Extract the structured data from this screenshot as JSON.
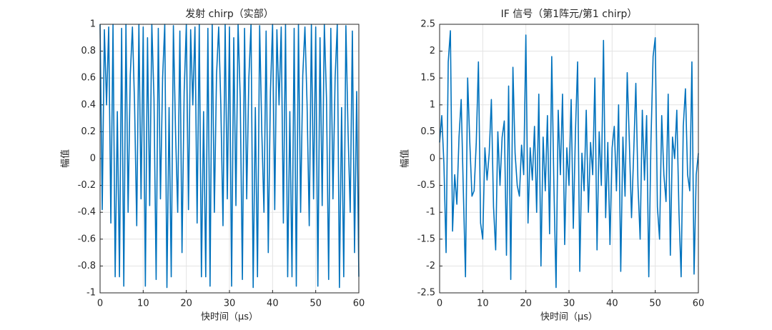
{
  "chart_data": [
    {
      "type": "line",
      "title": "发射 chirp（实部）",
      "xlabel": "快时间（μs）",
      "ylabel": "幅值",
      "color": "#0072bd",
      "grid": true,
      "xlim": [
        0,
        60
      ],
      "xticks": [
        0,
        10,
        20,
        30,
        40,
        50,
        60
      ],
      "ylim": [
        -1,
        1
      ],
      "yticks": [
        -1,
        -0.8,
        -0.6,
        -0.4,
        -0.2,
        0,
        0.2,
        0.4,
        0.6,
        0.8,
        1
      ],
      "x": [
        0,
        0.5,
        1,
        1.5,
        2,
        2.5,
        3,
        3.5,
        4,
        4.5,
        5,
        5.5,
        6,
        6.5,
        7,
        7.5,
        8,
        8.5,
        9,
        9.5,
        10,
        10.5,
        11,
        11.5,
        12,
        12.5,
        13,
        13.5,
        14,
        14.5,
        15,
        15.5,
        16,
        16.5,
        17,
        17.5,
        18,
        18.5,
        19,
        19.5,
        20,
        20.5,
        21,
        21.5,
        22,
        22.5,
        23,
        23.5,
        24,
        24.5,
        25,
        25.5,
        26,
        26.5,
        27,
        27.5,
        28,
        28.5,
        29,
        29.5,
        30,
        30.5,
        31,
        31.5,
        32,
        32.5,
        33,
        33.5,
        34,
        34.5,
        35,
        35.5,
        36,
        36.5,
        37,
        37.5,
        38,
        38.5,
        39,
        39.5,
        40,
        40.5,
        41,
        41.5,
        42,
        42.5,
        43,
        43.5,
        44,
        44.5,
        45,
        45.5,
        46,
        46.5,
        47,
        47.5,
        48,
        48.5,
        49,
        49.5,
        50,
        50.5,
        51,
        51.5,
        52,
        52.5,
        53,
        53.5,
        54,
        54.5,
        55,
        55.5,
        56,
        56.5,
        57,
        57.5,
        58,
        58.5,
        59,
        59.5,
        60
      ],
      "values": [
        1,
        -0.38,
        0.96,
        0.4,
        0.98,
        -0.48,
        1,
        -0.88,
        0.35,
        -0.88,
        0.97,
        -0.95,
        1,
        -0.4,
        0.62,
        0.98,
        0.4,
        -0.5,
        1,
        -0.3,
        0.98,
        -0.95,
        0.9,
        -0.35,
        1,
        0.45,
        -0.9,
        0.97,
        -0.3,
        0.6,
        1,
        -0.96,
        0.38,
        -0.88,
        0.99,
        0.2,
        -0.4,
        0.95,
        -0.7,
        0.5,
        1,
        -0.38,
        0.96,
        0.4,
        0.98,
        -0.48,
        1,
        -0.88,
        0.35,
        -0.88,
        0.97,
        -0.95,
        1,
        -0.4,
        0.62,
        0.98,
        0.4,
        -0.5,
        1,
        -0.3,
        0.98,
        -0.95,
        0.9,
        -0.35,
        1,
        0.45,
        -0.9,
        0.97,
        -0.3,
        0.6,
        1,
        -0.96,
        0.38,
        -0.88,
        0.99,
        0.2,
        -0.4,
        0.95,
        -0.7,
        0.5,
        1,
        -0.38,
        0.96,
        0.4,
        0.98,
        -0.48,
        1,
        -0.88,
        0.35,
        -0.88,
        0.97,
        -0.95,
        1,
        -0.4,
        0.62,
        0.98,
        0.4,
        -0.5,
        1,
        -0.3,
        0.98,
        -0.95,
        0.9,
        -0.35,
        1,
        0.45,
        -0.9,
        0.97,
        -0.3,
        0.6,
        1,
        -0.96,
        0.38,
        -0.88,
        0.99,
        0.2,
        -0.4,
        0.95,
        -0.7,
        0.5,
        -0.88
      ]
    },
    {
      "type": "line",
      "title": "IF 信号（第1阵元/第1 chirp）",
      "xlabel": "快时间（μs）",
      "ylabel": "幅值",
      "color": "#0072bd",
      "grid": true,
      "xlim": [
        0,
        60
      ],
      "xticks": [
        0,
        10,
        20,
        30,
        40,
        50,
        60
      ],
      "ylim": [
        -2.5,
        2.5
      ],
      "yticks": [
        -2.5,
        -2,
        -1.5,
        -1,
        -0.5,
        0,
        0.5,
        1,
        1.5,
        2,
        2.5
      ],
      "x": [
        0,
        0.5,
        1,
        1.5,
        2,
        2.5,
        3,
        3.5,
        4,
        4.5,
        5,
        5.5,
        6,
        6.5,
        7,
        7.5,
        8,
        8.5,
        9,
        9.5,
        10,
        10.5,
        11,
        11.5,
        12,
        12.5,
        13,
        13.5,
        14,
        14.5,
        15,
        15.5,
        16,
        16.5,
        17,
        17.5,
        18,
        18.5,
        19,
        19.5,
        20,
        20.5,
        21,
        21.5,
        22,
        22.5,
        23,
        23.5,
        24,
        24.5,
        25,
        25.5,
        26,
        26.5,
        27,
        27.5,
        28,
        28.5,
        29,
        29.5,
        30,
        30.5,
        31,
        31.5,
        32,
        32.5,
        33,
        33.5,
        34,
        34.5,
        35,
        35.5,
        36,
        36.5,
        37,
        37.5,
        38,
        38.5,
        39,
        39.5,
        40,
        40.5,
        41,
        41.5,
        42,
        42.5,
        43,
        43.5,
        44,
        44.5,
        45,
        45.5,
        46,
        46.5,
        47,
        47.5,
        48,
        48.5,
        49,
        49.5,
        50,
        50.5,
        51,
        51.5,
        52,
        52.5,
        53,
        53.5,
        54,
        54.5,
        55,
        55.5,
        56,
        56.5,
        57,
        57.5,
        58,
        58.5,
        59,
        59.5,
        60
      ],
      "values": [
        0.3,
        0.8,
        -0.1,
        -1.75,
        1.8,
        2.38,
        -1.35,
        -0.3,
        -0.85,
        0.4,
        1.1,
        -0.6,
        -2.2,
        1.5,
        0.3,
        -0.7,
        -0.6,
        0.3,
        1.8,
        -1.2,
        -1.5,
        0.2,
        -0.4,
        0.1,
        1.1,
        -0.9,
        -1.7,
        0.5,
        -0.5,
        0.4,
        0.7,
        -1.8,
        1.35,
        -2.25,
        1.7,
        0.1,
        -0.5,
        -0.7,
        0.25,
        -0.3,
        2.3,
        -1.2,
        0.2,
        -0.4,
        0.6,
        -1.0,
        1.2,
        -2.0,
        0.4,
        -0.6,
        0.8,
        -1.4,
        1.9,
        -0.5,
        -2.4,
        0.9,
        -0.3,
        1.2,
        -1.6,
        0.2,
        -0.5,
        1.1,
        -1.3,
        0.5,
        1.8,
        -2.1,
        0.1,
        -0.6,
        0.9,
        -1.0,
        0.3,
        -0.3,
        1.5,
        -1.7,
        0.5,
        -0.5,
        2.2,
        -1.1,
        0.3,
        -1.6,
        0.2,
        0.6,
        -0.6,
        1.0,
        -2.1,
        0.4,
        -0.7,
        1.6,
        0.3,
        -1.1,
        0.1,
        1.4,
        -0.5,
        -1.5,
        0.9,
        -0.4,
        0.8,
        -2.2,
        0.3,
        1.9,
        2.25,
        -0.9,
        -1.5,
        0.8,
        -0.3,
        -0.8,
        1.2,
        -1.8,
        0.4,
        0.0,
        0.9,
        -1.0,
        -2.2,
        0.6,
        1.3,
        -0.3,
        -0.6,
        1.8,
        -2.15,
        -0.3,
        0.1
      ]
    }
  ]
}
